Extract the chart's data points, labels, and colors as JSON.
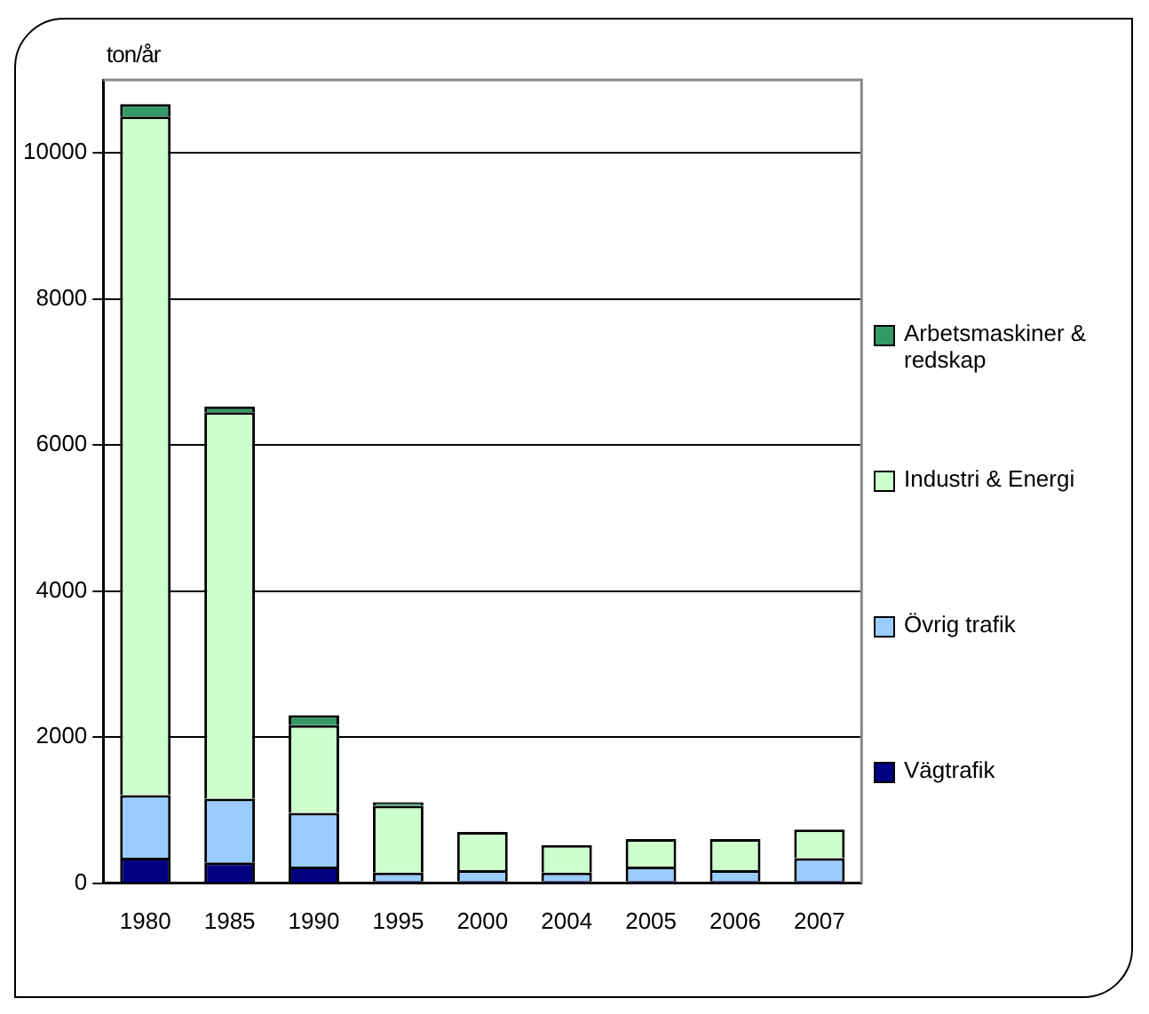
{
  "chart_data": {
    "type": "bar",
    "stacked": true,
    "ylabel": "ton/år",
    "categories": [
      "1980",
      "1985",
      "1990",
      "1995",
      "2000",
      "2004",
      "2005",
      "2006",
      "2007"
    ],
    "series": [
      {
        "name": "Vägtrafik",
        "color": "#000080",
        "values": [
          350,
          287,
          230,
          30,
          30,
          30,
          30,
          30,
          30
        ]
      },
      {
        "name": "Övrig trafik",
        "color": "#99ccff",
        "values": [
          858,
          873,
          735,
          117,
          150,
          117,
          198,
          150,
          313
        ]
      },
      {
        "name": "Industri & Energi",
        "color": "#ccffcc",
        "values": [
          9290,
          5290,
          1200,
          913,
          523,
          375,
          377,
          425,
          392
        ]
      },
      {
        "name": "Arbetsmaskiner & redskap",
        "color": "#339966",
        "values": [
          170,
          80,
          135,
          50,
          0,
          0,
          0,
          0,
          0
        ]
      }
    ],
    "ylim": [
      0,
      11000
    ],
    "yticks": [
      0,
      2000,
      4000,
      6000,
      8000,
      10000
    ],
    "grid": "y",
    "legend": "right"
  }
}
